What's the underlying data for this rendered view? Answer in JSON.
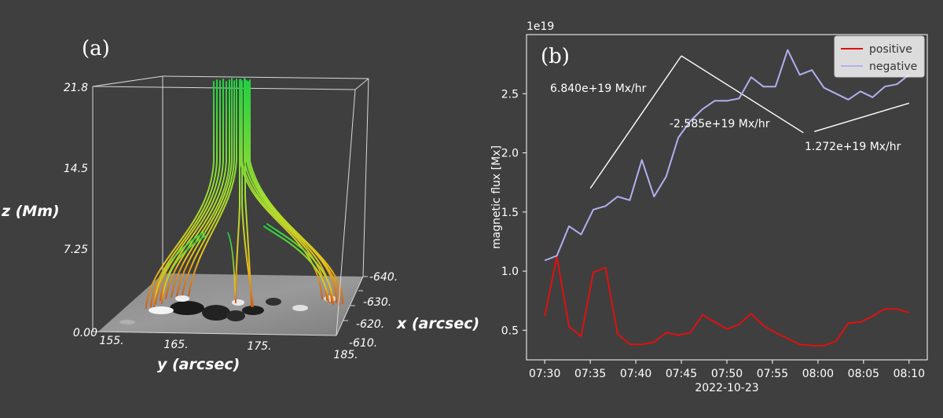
{
  "chart_data": [
    {
      "panel": "(a)",
      "type": "other",
      "xlabel": "x (arcsec)",
      "ylabel": "y (arcsec)",
      "zlabel": "z (Mm)",
      "x_ticks": [
        "-640.",
        "-630.",
        "-620.",
        "-610."
      ],
      "y_ticks": [
        "155.",
        "165.",
        "175.",
        "185."
      ],
      "z_ticks": [
        "0.00",
        "7.25",
        "14.5",
        "21.8"
      ]
    },
    {
      "panel": "(b)",
      "type": "line",
      "ylabel": "magnetic flux [Mx]",
      "xlabel": "2022-10-23",
      "offset_text": "1e19",
      "x_ticks": [
        "07:30",
        "07:35",
        "07:40",
        "07:45",
        "07:50",
        "07:55",
        "08:00",
        "08:05",
        "08:10"
      ],
      "y_ticks": [
        "0.5",
        "1.0",
        "1.5",
        "2.0",
        "2.5"
      ],
      "xlim": [
        29.5,
        40.5
      ],
      "ylim": [
        0.25,
        3.0
      ],
      "legend_position": "top-right",
      "colors": {
        "positive": "#e01010",
        "negative": "#b0b0f0",
        "fit": "#ffffff"
      },
      "series": [
        {
          "name": "positive",
          "t_minutes": [
            30.0,
            30.33,
            30.67,
            31.0,
            31.33,
            31.67,
            32.0,
            32.33,
            32.67,
            33.0,
            33.33,
            33.67,
            34.0,
            34.33,
            34.67,
            35.0,
            35.33,
            35.67,
            36.0,
            36.33,
            36.67,
            37.0,
            37.33,
            37.67,
            38.0,
            38.33,
            38.67,
            39.0,
            39.33,
            39.67,
            40.0
          ],
          "values": [
            0.62,
            1.12,
            0.53,
            0.45,
            0.99,
            1.03,
            0.47,
            0.38,
            0.38,
            0.4,
            0.48,
            0.46,
            0.48,
            0.63,
            0.57,
            0.51,
            0.55,
            0.64,
            0.54,
            0.48,
            0.43,
            0.38,
            0.37,
            0.37,
            0.41,
            0.56,
            0.57,
            0.62,
            0.68,
            0.68,
            0.65
          ]
        },
        {
          "name": "negative",
          "t_minutes": [
            30.0,
            30.33,
            30.67,
            31.0,
            31.33,
            31.67,
            32.0,
            32.33,
            32.67,
            33.0,
            33.33,
            33.67,
            34.0,
            34.33,
            34.67,
            35.0,
            35.33,
            35.67,
            36.0,
            36.33,
            36.67,
            37.0,
            37.33,
            37.67,
            38.0,
            38.33,
            38.67,
            39.0,
            39.33,
            39.67,
            40.0
          ],
          "values": [
            1.09,
            1.13,
            1.38,
            1.31,
            1.52,
            1.55,
            1.63,
            1.6,
            1.94,
            1.63,
            1.8,
            2.13,
            2.27,
            2.37,
            2.44,
            2.44,
            2.46,
            2.64,
            2.56,
            2.56,
            2.87,
            2.66,
            2.7,
            2.55,
            2.5,
            2.45,
            2.52,
            2.47,
            2.56,
            2.58,
            2.66
          ]
        }
      ],
      "annotations": [
        "6.840e+19 Mx/hr",
        "-2.585e+19 Mx/hr",
        "1.272e+19 Mx/hr"
      ]
    }
  ]
}
